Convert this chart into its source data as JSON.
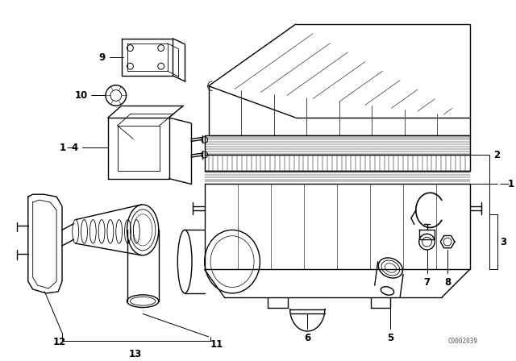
{
  "background_color": "#ffffff",
  "watermark": "C0002039",
  "line_color": "#000000",
  "lw_main": 1.0,
  "lw_thin": 0.6,
  "lw_leader": 0.7
}
